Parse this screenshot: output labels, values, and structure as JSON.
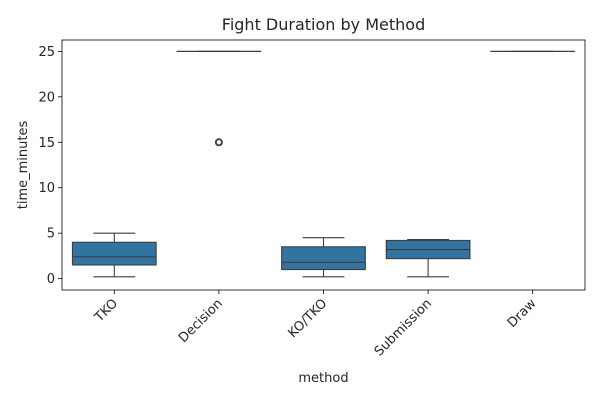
{
  "chart_data": {
    "type": "box",
    "title": "Fight Duration by Method",
    "xlabel": "method",
    "ylabel": "time_minutes",
    "categories": [
      "TKO",
      "Decision",
      "KO/TKO",
      "Submission",
      "Draw"
    ],
    "boxes": [
      {
        "category": "TKO",
        "whislo": 0.2,
        "q1": 1.5,
        "med": 2.4,
        "q3": 4.0,
        "whishi": 5.0,
        "fliers": []
      },
      {
        "category": "Decision",
        "whislo": 25.0,
        "q1": 25.0,
        "med": 25.0,
        "q3": 25.0,
        "whishi": 25.0,
        "fliers": [
          15.0
        ]
      },
      {
        "category": "KO/TKO",
        "whislo": 0.2,
        "q1": 1.0,
        "med": 1.8,
        "q3": 3.5,
        "whishi": 4.5,
        "fliers": []
      },
      {
        "category": "Submission",
        "whislo": 0.2,
        "q1": 2.2,
        "med": 3.2,
        "q3": 4.2,
        "whishi": 4.3,
        "fliers": []
      },
      {
        "category": "Draw",
        "whislo": 25.0,
        "q1": 25.0,
        "med": 25.0,
        "q3": 25.0,
        "whishi": 25.0,
        "fliers": []
      }
    ],
    "yticks": [
      0,
      5,
      10,
      15,
      20,
      25
    ],
    "ylim": [
      -1.25,
      26.25
    ],
    "grid": false,
    "legend": "none",
    "colors": {
      "box_fill": "#3274a1",
      "line": "#3d3d3d"
    }
  }
}
